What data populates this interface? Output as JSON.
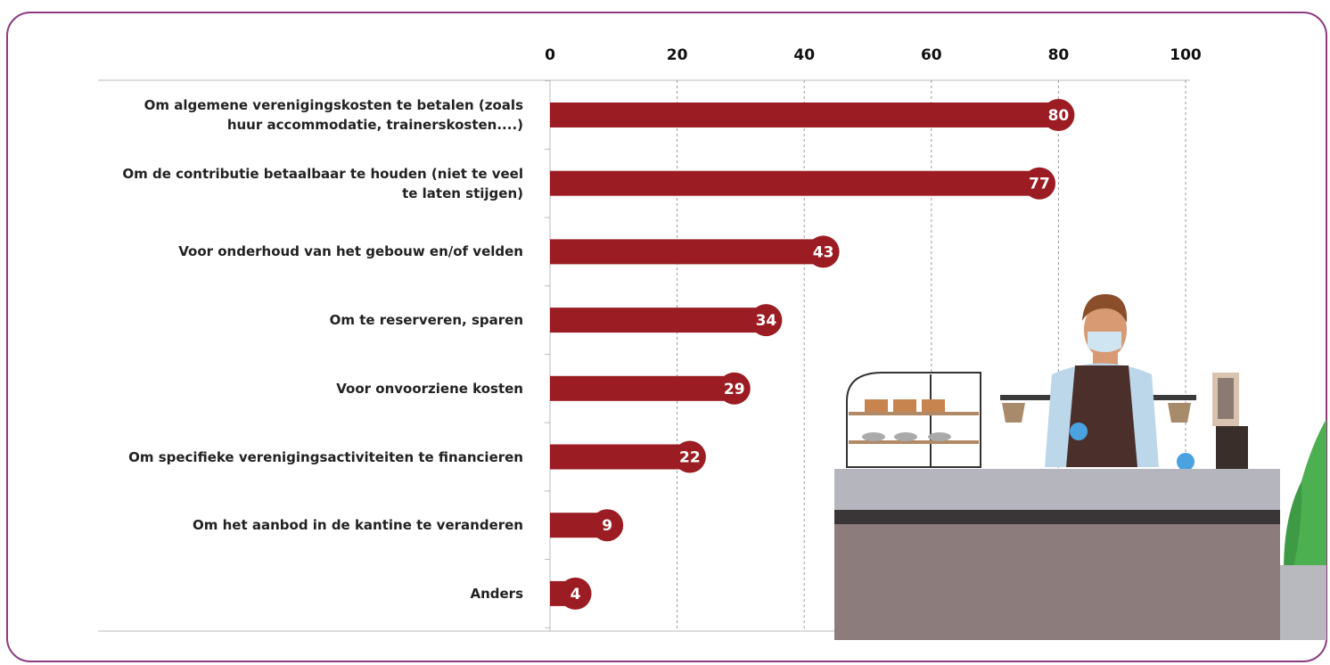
{
  "chart_data": {
    "type": "bar",
    "orientation": "horizontal",
    "categories": [
      "Om algemene verenigingskosten te betalen (zoals huur accommodatie, trainerskosten....)",
      "Om de contributie betaalbaar te houden (niet te veel te laten stijgen)",
      "Voor onderhoud van het gebouw en/of velden",
      "Om te reserveren, sparen",
      "Voor onvoorziene kosten",
      "Om specifieke verenigingsactiviteiten te financieren",
      "Om het aanbod in de kantine te veranderen",
      "Anders"
    ],
    "values": [
      80,
      77,
      43,
      34,
      29,
      22,
      9,
      4
    ],
    "color": "#9b1c22",
    "xlim": [
      0,
      100
    ],
    "xticks": [
      0,
      20,
      40,
      60,
      80,
      100
    ],
    "grid": true
  }
}
